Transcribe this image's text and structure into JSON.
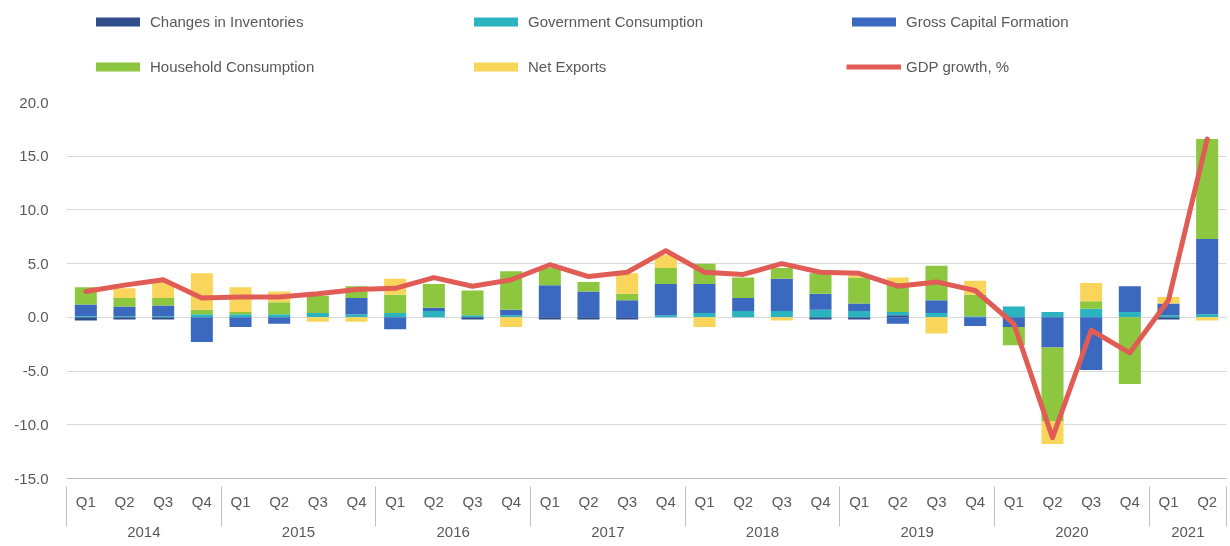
{
  "chart_data": {
    "type": "bar",
    "stacked": true,
    "grid": "y",
    "legend": "top",
    "categories": [
      "Q1",
      "Q2",
      "Q3",
      "Q4",
      "Q1",
      "Q2",
      "Q3",
      "Q4",
      "Q1",
      "Q2",
      "Q3",
      "Q4",
      "Q1",
      "Q2",
      "Q3",
      "Q4",
      "Q1",
      "Q2",
      "Q3",
      "Q4",
      "Q1",
      "Q2",
      "Q3",
      "Q4",
      "Q1",
      "Q2",
      "Q3",
      "Q4",
      "Q1",
      "Q2"
    ],
    "annotations": [
      "2014",
      "2015",
      "2016",
      "2017",
      "2018",
      "2019",
      "2020",
      "2021"
    ],
    "series": [
      {
        "name": "Changes in Inventories",
        "color": "#2e4d8a",
        "values": [
          -0.3,
          -0.2,
          -0.2,
          null,
          null,
          null,
          null,
          null,
          null,
          null,
          -0.2,
          null,
          -0.2,
          -0.2,
          -0.2,
          null,
          null,
          null,
          null,
          -0.2,
          -0.2,
          0.2,
          null,
          null,
          null,
          null,
          null,
          null,
          -0.2,
          null
        ]
      },
      {
        "name": "Government Consumption",
        "color": "#2bb3bf",
        "values": [
          0.1,
          0.1,
          0.1,
          0.3,
          0.3,
          0.3,
          0.4,
          0.3,
          0.4,
          0.6,
          0.2,
          0.2,
          null,
          null,
          null,
          0.2,
          0.4,
          0.6,
          0.6,
          0.7,
          0.6,
          0.3,
          0.4,
          0.1,
          1.0,
          0.5,
          0.8,
          0.5,
          0.2,
          0.3
        ]
      },
      {
        "name": "Gross Capital Formation",
        "color": "#3b69bf",
        "values": [
          1.1,
          0.9,
          1.0,
          -2.3,
          -0.9,
          -0.6,
          null,
          1.5,
          -1.1,
          0.3,
          null,
          0.5,
          3.0,
          2.4,
          1.6,
          2.9,
          2.7,
          1.2,
          3.0,
          1.5,
          0.7,
          -0.6,
          1.2,
          -0.8,
          -0.9,
          -2.8,
          -4.9,
          2.4,
          1.1,
          7.0
        ]
      },
      {
        "name": "Household Consumption",
        "color": "#8dc63f",
        "values": [
          1.6,
          0.8,
          0.7,
          0.4,
          0.2,
          1.1,
          1.6,
          1.1,
          1.7,
          2.2,
          2.3,
          3.6,
          1.6,
          0.9,
          0.6,
          1.5,
          1.9,
          1.9,
          1.0,
          1.9,
          2.4,
          2.7,
          3.2,
          2.0,
          -1.7,
          -6.9,
          0.7,
          -6.2,
          null,
          9.3
        ]
      },
      {
        "name": "Net Exports",
        "color": "#fad55c",
        "values": [
          null,
          0.9,
          1.5,
          3.4,
          2.3,
          1.0,
          -0.4,
          -0.4,
          1.5,
          null,
          null,
          -0.9,
          null,
          null,
          1.9,
          1.2,
          -0.9,
          null,
          -0.3,
          null,
          0.2,
          0.5,
          -1.5,
          1.3,
          null,
          -2.1,
          1.7,
          null,
          0.6,
          -0.3
        ]
      },
      {
        "name": "GDP growth, %",
        "type": "line",
        "color": "#e05c55",
        "values": [
          2.4,
          3.0,
          3.5,
          1.8,
          1.9,
          1.9,
          2.2,
          2.6,
          2.7,
          3.7,
          2.9,
          3.5,
          4.9,
          3.8,
          4.2,
          6.2,
          4.2,
          4.0,
          5.0,
          4.2,
          4.1,
          2.9,
          3.3,
          2.5,
          -0.6,
          -11.2,
          -1.2,
          -3.3,
          1.6,
          16.6
        ]
      }
    ],
    "ylim": [
      -15,
      20
    ],
    "yticks": [
      {
        "value": -15,
        "label": "-15.0"
      },
      {
        "value": -10,
        "label": "-10.0"
      },
      {
        "value": -5,
        "label": "-5.0"
      },
      {
        "value": 0,
        "label": "0.0"
      },
      {
        "value": 5,
        "label": "5.0"
      },
      {
        "value": 10,
        "label": "10.0"
      },
      {
        "value": 15,
        "label": "15.0"
      },
      {
        "value": 20,
        "label": "20.0"
      }
    ]
  }
}
